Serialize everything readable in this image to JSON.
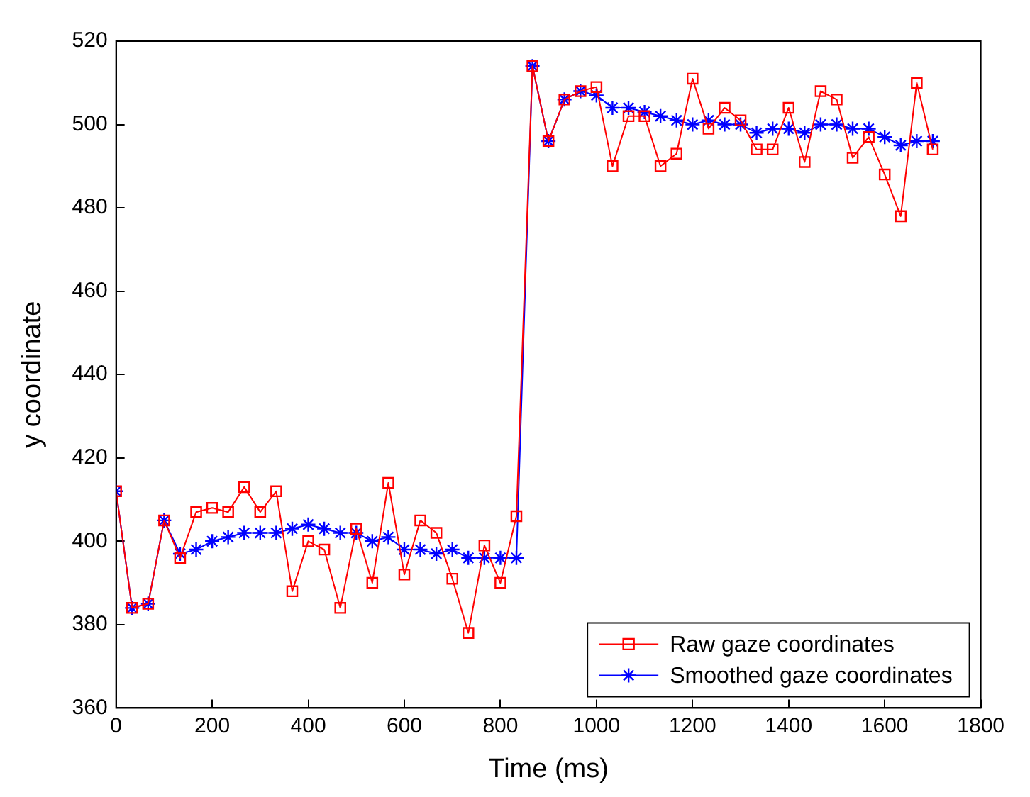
{
  "chart_data": {
    "type": "line",
    "xlabel": "Time (ms)",
    "ylabel": "y coordinate",
    "x": [
      0,
      33.3,
      66.7,
      100,
      133.3,
      166.7,
      200,
      233.3,
      266.7,
      300,
      333.3,
      366.7,
      400,
      433.3,
      466.7,
      500,
      533.3,
      566.7,
      600,
      633.3,
      666.7,
      700,
      733.3,
      766.7,
      800,
      833.3,
      866.7,
      900,
      933.3,
      966.7,
      1000,
      1033.3,
      1066.7,
      1100,
      1133.3,
      1166.7,
      1200,
      1233.3,
      1266.7,
      1300,
      1333.3,
      1366.7,
      1400,
      1433.3,
      1466.7,
      1500,
      1533.3,
      1566.7,
      1600,
      1633.3,
      1666.7,
      1700
    ],
    "series": [
      {
        "name": "Raw gaze coordinates",
        "color": "#ff0000",
        "marker": "square",
        "values": [
          412,
          384,
          385,
          405,
          396,
          407,
          408,
          407,
          413,
          407,
          412,
          388,
          400,
          398,
          384,
          403,
          390,
          414,
          392,
          405,
          402,
          391,
          378,
          399,
          390,
          406,
          514,
          496,
          506,
          508,
          509,
          490,
          502,
          502,
          490,
          493,
          511,
          499,
          504,
          501,
          494,
          494,
          504,
          491,
          508,
          506,
          492,
          497,
          488,
          478,
          510,
          494
        ]
      },
      {
        "name": "Smoothed gaze coordinates",
        "color": "#0000ff",
        "marker": "cross",
        "values": [
          412,
          384,
          385,
          405,
          397,
          398,
          400,
          401,
          402,
          402,
          402,
          403,
          404,
          403,
          402,
          402,
          400,
          401,
          398,
          398,
          397,
          398,
          396,
          396,
          396,
          396,
          514,
          496,
          506,
          508,
          507,
          504,
          504,
          503,
          502,
          501,
          500,
          501,
          500,
          500,
          498,
          499,
          499,
          498,
          500,
          500,
          499,
          499,
          497,
          495,
          496,
          496
        ]
      }
    ],
    "xlim": [
      0,
      1800
    ],
    "xticks": [
      0,
      200,
      400,
      600,
      800,
      1000,
      1200,
      1400,
      1600,
      1800
    ],
    "ylim": [
      360,
      520
    ],
    "yticks": [
      360,
      380,
      400,
      420,
      440,
      460,
      480,
      500,
      520
    ],
    "grid": false,
    "legend": "bottom right"
  }
}
